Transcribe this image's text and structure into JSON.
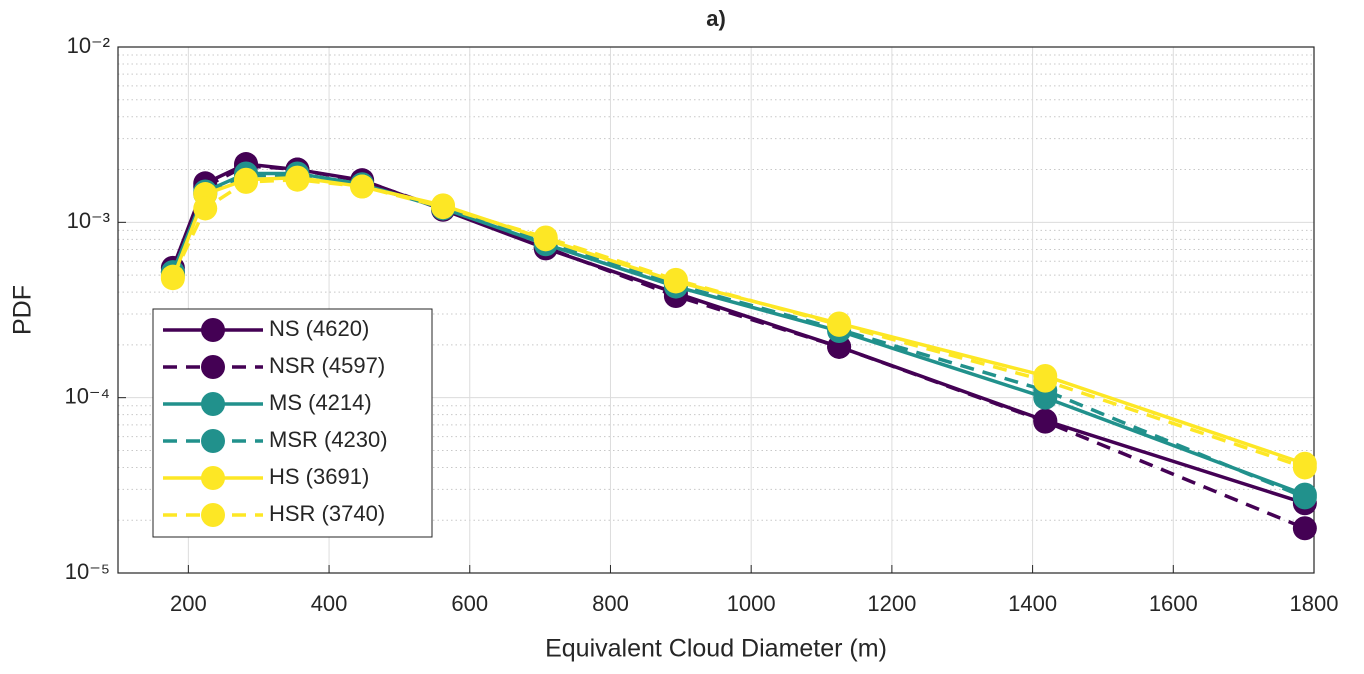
{
  "chart_data": {
    "type": "line",
    "title": "a)",
    "xlabel": "Equivalent Cloud Diameter (m)",
    "ylabel": "PDF",
    "x": [
      178,
      224,
      282,
      355,
      447,
      562,
      708,
      893,
      1125,
      1418,
      1787
    ],
    "xlim": [
      100,
      1800
    ],
    "xticks": [
      200,
      400,
      600,
      800,
      1000,
      1200,
      1400,
      1600,
      1800
    ],
    "ylim": [
      1e-05,
      0.01
    ],
    "yscale": "log",
    "yticks": [
      {
        "value": 1e-05,
        "label": "10⁻⁵"
      },
      {
        "value": 0.0001,
        "label": "10⁻⁴"
      },
      {
        "value": 0.001,
        "label": "10⁻³"
      },
      {
        "value": 0.01,
        "label": "10⁻²"
      }
    ],
    "grid": true,
    "minor_grid": true,
    "legend": "lower left",
    "series": [
      {
        "name": "NS (4620)",
        "color": "#440154",
        "dashed": false,
        "values": [
          0.00055,
          0.00167,
          0.00215,
          0.002,
          0.00174,
          0.00118,
          0.00071,
          0.000395,
          0.000195,
          7.4e-05,
          2.5e-05
        ]
      },
      {
        "name": "NSR (4597)",
        "color": "#440154",
        "dashed": true,
        "values": [
          0.00052,
          0.0016,
          0.0021,
          0.002,
          0.00172,
          0.0012,
          0.00072,
          0.00038,
          0.000195,
          7.3e-05,
          1.8e-05
        ]
      },
      {
        "name": "MS (4214)",
        "color": "#21918c",
        "dashed": false,
        "values": [
          0.00052,
          0.0015,
          0.0019,
          0.0019,
          0.00165,
          0.0012,
          0.00075,
          0.00043,
          0.00024,
          0.0001,
          2.8e-05
        ]
      },
      {
        "name": "MSR (4230)",
        "color": "#21918c",
        "dashed": true,
        "values": [
          0.0005,
          0.00145,
          0.00185,
          0.00185,
          0.00163,
          0.00122,
          0.00078,
          0.00044,
          0.000245,
          0.00011,
          2.7e-05
        ]
      },
      {
        "name": "HS (3691)",
        "color": "#fde725",
        "dashed": false,
        "values": [
          0.00048,
          0.00145,
          0.00175,
          0.0018,
          0.0016,
          0.00125,
          0.0008,
          0.00046,
          0.000265,
          0.000133,
          4.2e-05
        ]
      },
      {
        "name": "HSR (3740)",
        "color": "#fde725",
        "dashed": true,
        "values": [
          0.00049,
          0.0012,
          0.0017,
          0.00175,
          0.0016,
          0.00122,
          0.00082,
          0.00047,
          0.00026,
          0.000125,
          4e-05
        ]
      }
    ]
  }
}
